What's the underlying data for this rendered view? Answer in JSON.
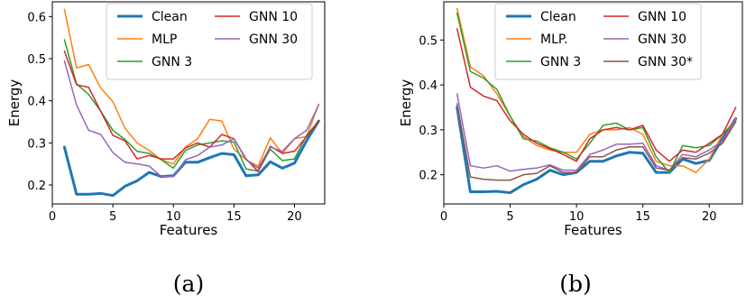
{
  "figure": {
    "captions": [
      "(a)",
      "(b)"
    ]
  },
  "chart_data": [
    {
      "type": "line",
      "title": "",
      "xlabel": "Features",
      "ylabel": "Energy",
      "xlim": [
        0,
        22.5
      ],
      "ylim": [
        0.155,
        0.635
      ],
      "xticks": [
        0,
        5,
        10,
        15,
        20
      ],
      "yticks": [
        0.2,
        0.3,
        0.4,
        0.5,
        0.6
      ],
      "ytick_labels": [
        "0.2",
        "0.3",
        "0.4",
        "0.5",
        "0.6"
      ],
      "grid": false,
      "legend_position": "top-center",
      "legend_columns": 2,
      "x": [
        1,
        2,
        3,
        4,
        5,
        6,
        7,
        8,
        9,
        10,
        11,
        12,
        13,
        14,
        15,
        16,
        17,
        18,
        19,
        20,
        21,
        22
      ],
      "series": [
        {
          "name": "Clean",
          "color": "#1f77b4",
          "width": 3,
          "legend": true,
          "values": [
            0.29,
            0.178,
            0.178,
            0.18,
            0.175,
            0.197,
            0.21,
            0.23,
            0.22,
            0.222,
            0.254,
            0.254,
            0.265,
            0.275,
            0.272,
            0.222,
            0.224,
            0.255,
            0.24,
            0.252,
            0.305,
            0.352
          ]
        },
        {
          "name": "MLP",
          "color": "#ff7f0e",
          "width": 1.5,
          "legend": true,
          "values": [
            0.617,
            0.478,
            0.486,
            0.43,
            0.398,
            0.335,
            0.3,
            0.282,
            0.26,
            0.25,
            0.29,
            0.31,
            0.356,
            0.352,
            0.285,
            0.26,
            0.245,
            0.312,
            0.275,
            0.31,
            0.315,
            0.392
          ]
        },
        {
          "name": "GNN 3",
          "color": "#2ca02c",
          "width": 1.5,
          "legend": true,
          "values": [
            0.545,
            0.44,
            0.415,
            0.375,
            0.33,
            0.308,
            0.28,
            0.275,
            0.26,
            0.24,
            0.282,
            0.295,
            0.3,
            0.305,
            0.302,
            0.238,
            0.233,
            0.285,
            0.258,
            0.262,
            0.318,
            0.352
          ]
        },
        {
          "name": "GNN 10",
          "color": "#d62728",
          "width": 1.5,
          "legend": true,
          "values": [
            0.518,
            0.438,
            0.432,
            0.375,
            0.318,
            0.305,
            0.262,
            0.27,
            0.262,
            0.262,
            0.288,
            0.3,
            0.29,
            0.32,
            0.31,
            0.262,
            0.232,
            0.292,
            0.275,
            0.28,
            0.315,
            0.35
          ]
        },
        {
          "name": "GNN 30",
          "color": "#9467bd",
          "width": 1.5,
          "legend": true,
          "values": [
            0.495,
            0.39,
            0.33,
            0.32,
            0.277,
            0.254,
            0.25,
            0.245,
            0.22,
            0.22,
            0.26,
            0.27,
            0.29,
            0.295,
            0.31,
            0.26,
            0.24,
            0.29,
            0.28,
            0.31,
            0.33,
            0.39
          ]
        }
      ]
    },
    {
      "type": "line",
      "title": "",
      "xlabel": "Features",
      "ylabel": "Energy",
      "xlim": [
        0,
        22.5
      ],
      "ylim": [
        0.135,
        0.585
      ],
      "xticks": [
        0,
        5,
        10,
        15,
        20
      ],
      "yticks": [
        0.2,
        0.3,
        0.4,
        0.5
      ],
      "ytick_labels": [
        "0.2",
        "0.3",
        "0.4",
        "0.5"
      ],
      "grid": false,
      "legend_position": "top-center",
      "legend_columns": 2,
      "x": [
        1,
        2,
        3,
        4,
        5,
        6,
        7,
        8,
        9,
        10,
        11,
        12,
        13,
        14,
        15,
        16,
        17,
        18,
        19,
        20,
        21,
        22
      ],
      "series": [
        {
          "name": "Clean",
          "color": "#1f77b4",
          "width": 3,
          "legend": true,
          "values": [
            0.35,
            0.162,
            0.162,
            0.163,
            0.16,
            0.178,
            0.19,
            0.21,
            0.2,
            0.205,
            0.23,
            0.23,
            0.242,
            0.25,
            0.248,
            0.205,
            0.205,
            0.235,
            0.225,
            0.232,
            0.28,
            0.325
          ]
        },
        {
          "name": "MLP.",
          "color": "#ff7f0e",
          "width": 1.5,
          "legend": true,
          "values": [
            0.57,
            0.44,
            0.42,
            0.38,
            0.33,
            0.285,
            0.265,
            0.255,
            0.25,
            0.25,
            0.29,
            0.3,
            0.3,
            0.305,
            0.29,
            0.23,
            0.22,
            0.22,
            0.205,
            0.235,
            0.29,
            0.322
          ]
        },
        {
          "name": "GNN 3",
          "color": "#2ca02c",
          "width": 1.5,
          "legend": true,
          "values": [
            0.56,
            0.43,
            0.415,
            0.39,
            0.33,
            0.28,
            0.275,
            0.26,
            0.25,
            0.235,
            0.27,
            0.31,
            0.315,
            0.3,
            0.305,
            0.24,
            0.205,
            0.265,
            0.26,
            0.265,
            0.29,
            0.32
          ]
        },
        {
          "name": "GNN 10",
          "color": "#d62728",
          "width": 1.5,
          "legend": true,
          "values": [
            0.525,
            0.395,
            0.375,
            0.365,
            0.32,
            0.29,
            0.27,
            0.258,
            0.245,
            0.23,
            0.28,
            0.3,
            0.305,
            0.3,
            0.31,
            0.255,
            0.23,
            0.255,
            0.25,
            0.27,
            0.29,
            0.35
          ]
        },
        {
          "name": "GNN 30",
          "color": "#9467bd",
          "width": 1.5,
          "legend": true,
          "values": [
            0.38,
            0.22,
            0.215,
            0.22,
            0.208,
            0.212,
            0.215,
            0.222,
            0.21,
            0.21,
            0.245,
            0.255,
            0.268,
            0.268,
            0.27,
            0.22,
            0.21,
            0.245,
            0.24,
            0.255,
            0.275,
            0.325
          ]
        },
        {
          "name": "GNN 30*",
          "color": "#8c564b",
          "width": 1.5,
          "legend": true,
          "values": [
            0.358,
            0.195,
            0.19,
            0.188,
            0.188,
            0.2,
            0.203,
            0.22,
            0.205,
            0.205,
            0.24,
            0.24,
            0.255,
            0.262,
            0.262,
            0.215,
            0.21,
            0.238,
            0.235,
            0.248,
            0.27,
            0.318
          ]
        }
      ]
    }
  ]
}
